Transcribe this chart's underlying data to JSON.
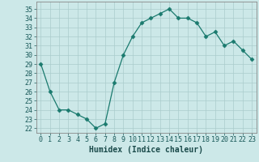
{
  "x": [
    0,
    1,
    2,
    3,
    4,
    5,
    6,
    7,
    8,
    9,
    10,
    11,
    12,
    13,
    14,
    15,
    16,
    17,
    18,
    19,
    20,
    21,
    22,
    23
  ],
  "y": [
    29,
    26,
    24,
    24,
    23.5,
    23,
    22,
    22.5,
    27,
    30,
    32,
    33.5,
    34,
    34.5,
    35,
    34,
    34,
    33.5,
    32,
    32.5,
    31,
    31.5,
    30.5,
    29.5
  ],
  "line_color": "#1a7a6e",
  "marker": "D",
  "marker_size": 2.5,
  "bg_color": "#cce8e8",
  "grid_color": "#aacccc",
  "xlabel": "Humidex (Indice chaleur)",
  "xlim": [
    -0.5,
    23.5
  ],
  "ylim": [
    21.5,
    35.8
  ],
  "yticks": [
    22,
    23,
    24,
    25,
    26,
    27,
    28,
    29,
    30,
    31,
    32,
    33,
    34,
    35
  ],
  "xticks": [
    0,
    1,
    2,
    3,
    4,
    5,
    6,
    7,
    8,
    9,
    10,
    11,
    12,
    13,
    14,
    15,
    16,
    17,
    18,
    19,
    20,
    21,
    22,
    23
  ],
  "xlabel_fontsize": 7,
  "tick_fontsize": 6
}
